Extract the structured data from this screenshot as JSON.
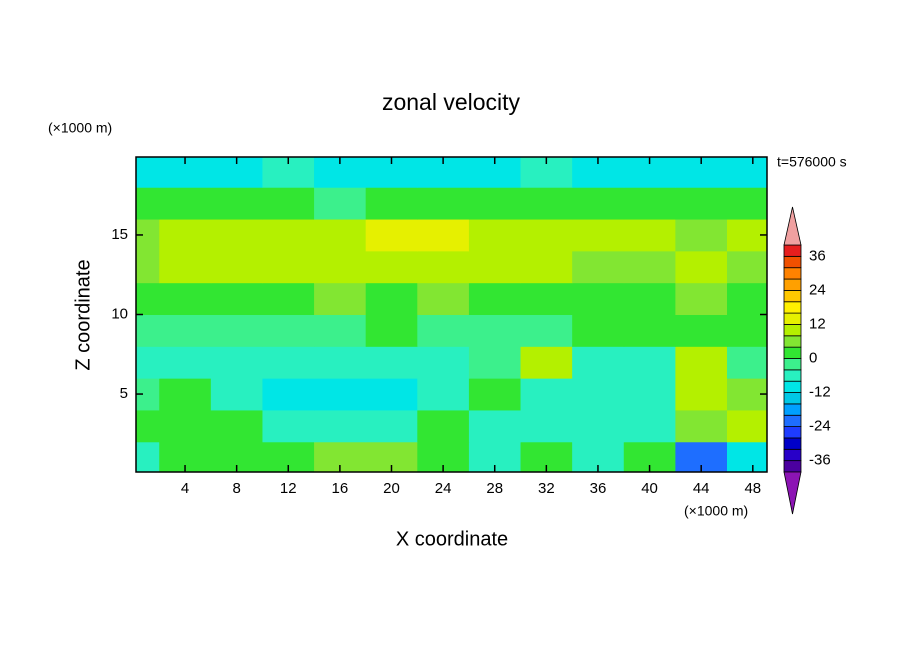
{
  "chart_data": {
    "type": "contour",
    "title": "zonal velocity",
    "xlabel": "X coordinate",
    "ylabel": "Z coordinate",
    "x_unit": "(×1000 m)",
    "y_unit": "(×1000 m)",
    "annotation": "t=576000 s",
    "xlim": [
      0.2,
      49.1
    ],
    "ylim": [
      0.1,
      19.9
    ],
    "xticks": [
      4,
      8,
      12,
      16,
      20,
      24,
      28,
      32,
      36,
      40,
      44,
      48
    ],
    "yticks": [
      5,
      10,
      15
    ],
    "x": [
      0,
      4,
      8,
      12,
      16,
      20,
      24,
      28,
      32,
      36,
      40,
      44,
      48
    ],
    "y": [
      1,
      3,
      5,
      7,
      9,
      11,
      13,
      15,
      17,
      19
    ],
    "z": [
      [
        -6,
        2,
        2,
        2,
        6,
        6,
        2,
        -6,
        2,
        -6,
        2,
        -22,
        -10
      ],
      [
        2,
        2,
        2,
        -6,
        -8,
        -8,
        2,
        -6,
        -8,
        -8,
        -6,
        4,
        8
      ],
      [
        -2,
        2,
        -6,
        -10,
        -10,
        -10,
        -6,
        0,
        -6,
        -8,
        -6,
        10,
        4
      ],
      [
        -6,
        -6,
        -6,
        -6,
        -6,
        -6,
        -6,
        -2,
        8,
        -6,
        -6,
        8,
        -2
      ],
      [
        -2,
        -2,
        -2,
        -2,
        -2,
        2,
        -2,
        -2,
        -2,
        2,
        2,
        2,
        2
      ],
      [
        2,
        2,
        2,
        2,
        6,
        2,
        6,
        2,
        2,
        2,
        2,
        6,
        2
      ],
      [
        6,
        10,
        10,
        10,
        10,
        10,
        10,
        10,
        10,
        6,
        6,
        10,
        6
      ],
      [
        6,
        10,
        10,
        10,
        10,
        14,
        14,
        10,
        10,
        10,
        10,
        6,
        10
      ],
      [
        2,
        2,
        2,
        2,
        -2,
        2,
        2,
        2,
        2,
        2,
        2,
        2,
        2
      ],
      [
        -10,
        -10,
        -10,
        -6,
        -10,
        -10,
        -10,
        -10,
        -6,
        -10,
        -10,
        -10,
        -10
      ]
    ],
    "levels": [
      -40,
      -36,
      -32,
      -28,
      -24,
      -20,
      -16,
      -12,
      -8,
      -4,
      0,
      4,
      8,
      12,
      16,
      20,
      24,
      28,
      32,
      36,
      40
    ],
    "colors": [
      "#8c14b4",
      "#4b00a0",
      "#2800c8",
      "#0000c8",
      "#1e3cff",
      "#1e6eff",
      "#00a0ff",
      "#00c8e6",
      "#00e6e6",
      "#28f0c0",
      "#3cf08c",
      "#32e632",
      "#82e632",
      "#b4f000",
      "#e6f000",
      "#fff000",
      "#ffc800",
      "#ffa000",
      "#ff8200",
      "#f05000",
      "#e61e1e",
      "#f0a0a0"
    ],
    "colorbar_ticks": [
      36,
      24,
      12,
      0,
      -12,
      -24,
      -36
    ]
  }
}
